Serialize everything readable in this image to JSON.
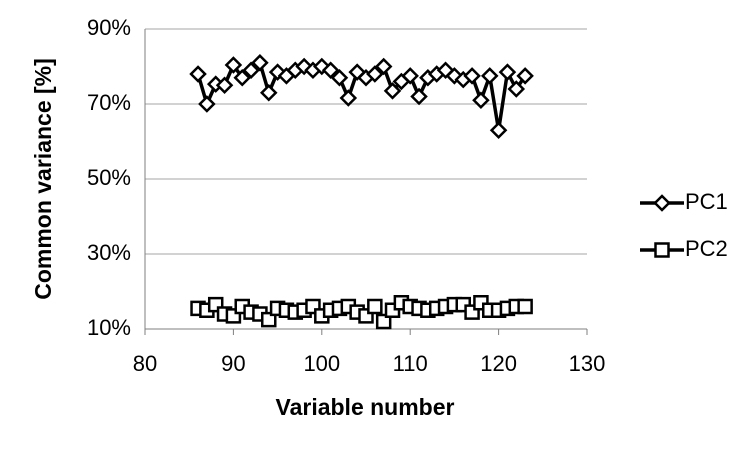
{
  "chart_data": {
    "type": "line",
    "xlabel": "Variable number",
    "ylabel": "Common variance [%]",
    "x": [
      86,
      87,
      88,
      89,
      90,
      91,
      92,
      93,
      94,
      95,
      96,
      97,
      98,
      99,
      100,
      101,
      102,
      103,
      104,
      105,
      106,
      107,
      108,
      109,
      110,
      111,
      112,
      113,
      114,
      115,
      116,
      117,
      118,
      119,
      120,
      121,
      122,
      123
    ],
    "series": [
      {
        "name": "PC1",
        "color": "#000000",
        "marker": "diamond",
        "values": [
          78,
          70,
          75.3,
          75,
          80.4,
          77,
          79,
          81,
          73,
          78.5,
          77.5,
          79,
          80,
          79,
          80,
          79,
          77,
          71.6,
          78.5,
          77,
          78,
          80,
          73.5,
          76,
          77.5,
          72,
          77,
          78,
          79,
          77.5,
          76.5,
          77.5,
          71,
          77.5,
          63,
          78.5,
          74,
          77.5
        ]
      },
      {
        "name": "PC2",
        "color": "#000000",
        "marker": "square",
        "values": [
          15.5,
          15,
          16.5,
          14,
          13.5,
          16,
          14.5,
          14,
          12.5,
          15.5,
          15,
          14.5,
          15,
          16,
          13.5,
          15,
          15.5,
          16,
          14.5,
          13.5,
          16,
          12,
          15,
          17,
          16,
          15.5,
          15,
          15.5,
          16,
          16.5,
          16.5,
          14.5,
          17,
          15,
          15,
          15.5,
          16,
          16
        ]
      }
    ],
    "xlim": [
      80,
      130
    ],
    "xticks": [
      80,
      90,
      100,
      110,
      120,
      130
    ],
    "ylim": [
      10,
      90
    ],
    "yticks": [
      {
        "value": 10,
        "label": "10%"
      },
      {
        "value": 30,
        "label": "30%"
      },
      {
        "value": 50,
        "label": "50%"
      },
      {
        "value": 70,
        "label": "70%"
      },
      {
        "value": 90,
        "label": "90%"
      }
    ],
    "grid": true,
    "legend": "right"
  }
}
